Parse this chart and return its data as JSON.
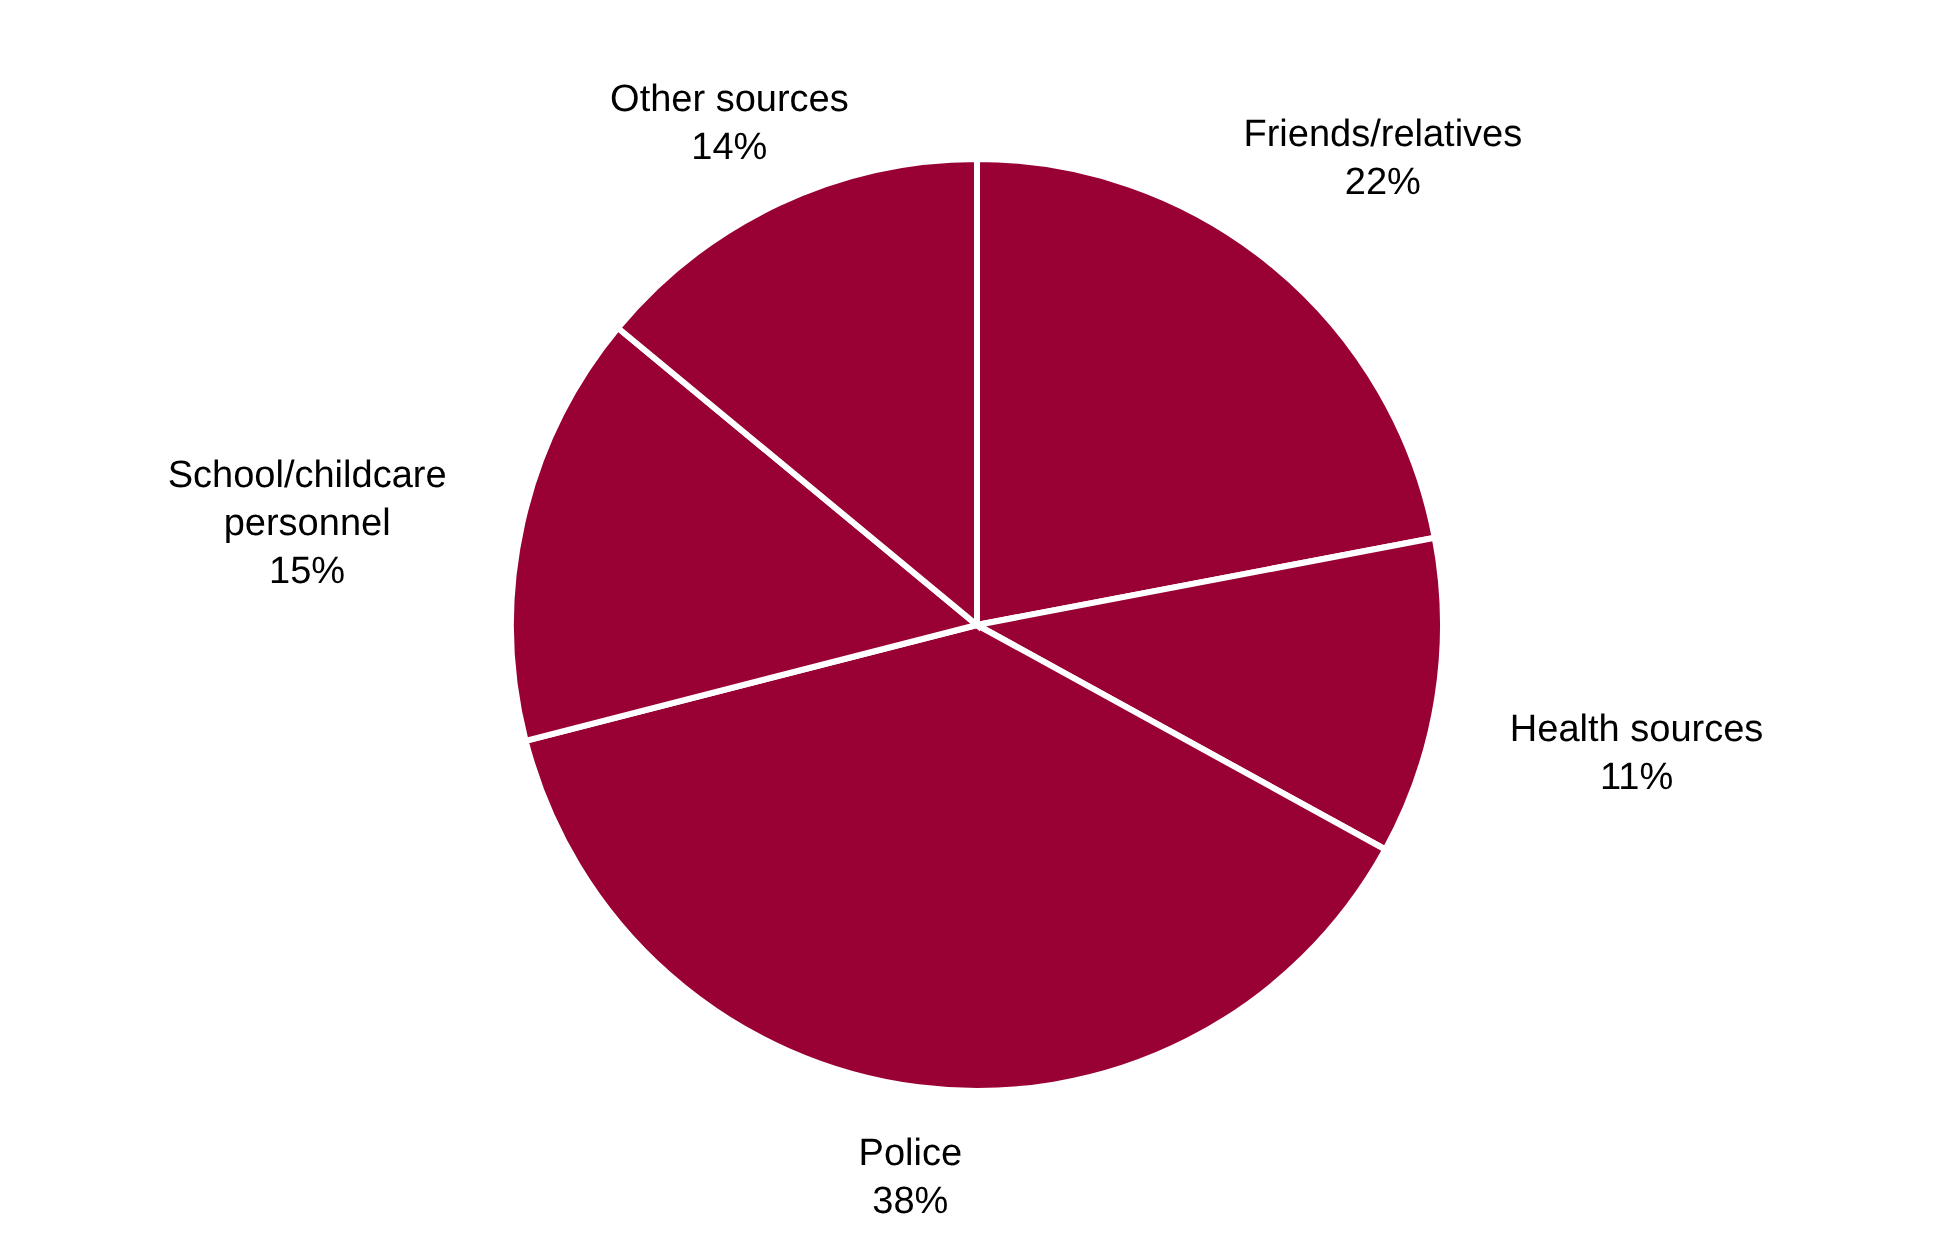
{
  "chart_data": {
    "type": "pie",
    "categories": [
      "Friends/relatives",
      "Health sources",
      "Police",
      "School/childcare personnel",
      "Other sources"
    ],
    "values": [
      22,
      11,
      38,
      15,
      14
    ],
    "value_labels": [
      "22%",
      "11%",
      "38%",
      "15%",
      "14%"
    ],
    "colors": [
      "#990033",
      "#990033",
      "#990033",
      "#990033",
      "#990033"
    ]
  }
}
